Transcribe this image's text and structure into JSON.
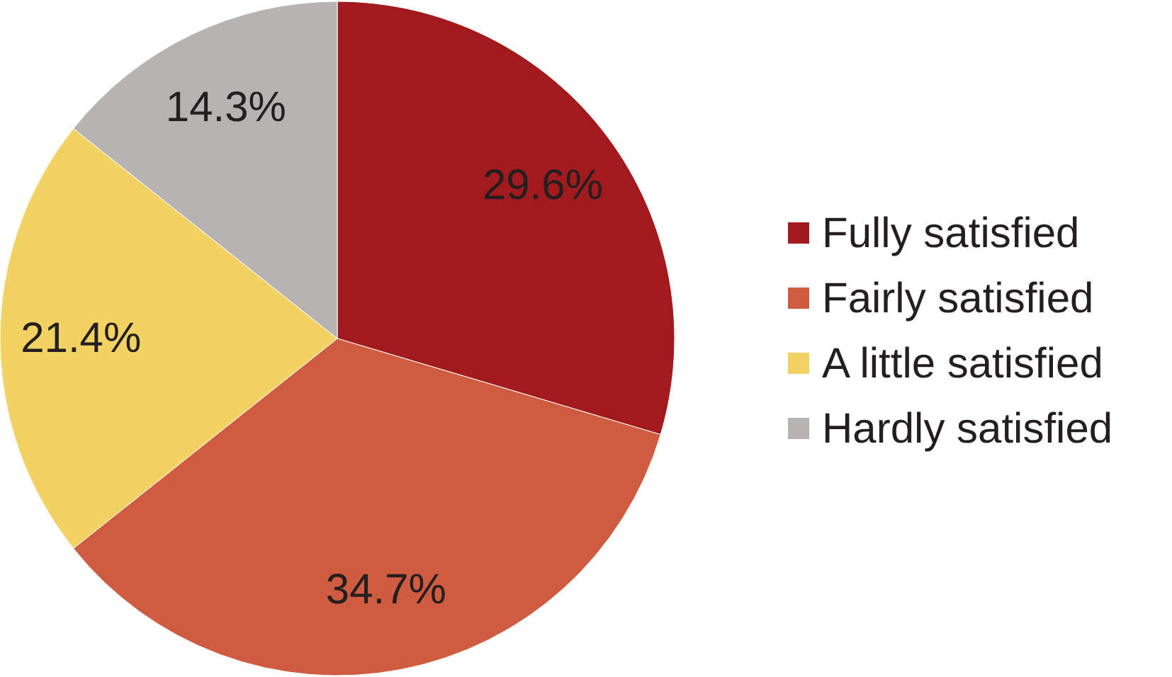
{
  "chart_data": {
    "type": "pie",
    "categories": [
      "Fully satisfied",
      "Fairly satisfied",
      "A little satisfied",
      "Hardly satisfied"
    ],
    "values": [
      29.6,
      34.7,
      21.4,
      14.3
    ],
    "value_labels": [
      "29.6%",
      "34.7%",
      "21.4%",
      "14.3%"
    ],
    "colors": [
      "#a21a1e",
      "#cf5c40",
      "#f2d262",
      "#b8b3b3"
    ],
    "legend": "right"
  }
}
